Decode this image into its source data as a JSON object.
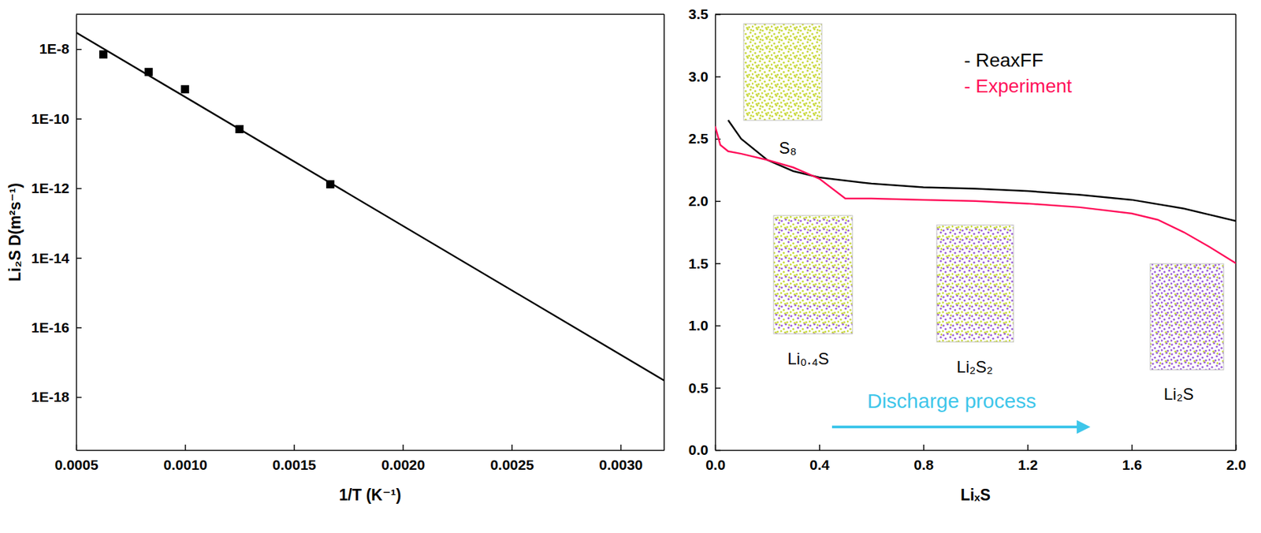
{
  "chart_data": [
    {
      "type": "scatter",
      "log": "y",
      "xlabel": "1/T (K⁻¹)",
      "ylabel": "Li₂S D(m²s⁻¹)",
      "xlim": [
        0.0005,
        0.0032
      ],
      "xticks": [
        {
          "value": 0.0005,
          "label": "0.0005"
        },
        {
          "value": 0.001,
          "label": "0.0010"
        },
        {
          "value": 0.0015,
          "label": "0.0015"
        },
        {
          "value": 0.002,
          "label": "0.0020"
        },
        {
          "value": 0.0025,
          "label": "0.0025"
        },
        {
          "value": 0.003,
          "label": "0.0030"
        }
      ],
      "ylim": [
        3e-20,
        1e-07
      ],
      "yticks": [
        {
          "value": 1e-08,
          "label": "1E-8"
        },
        {
          "value": 1e-10,
          "label": "1E-10"
        },
        {
          "value": 1e-12,
          "label": "1E-12"
        },
        {
          "value": 1e-14,
          "label": "1E-14"
        },
        {
          "value": 1e-16,
          "label": "1E-16"
        },
        {
          "value": 1e-18,
          "label": "1E-18"
        }
      ],
      "series": [
        {
          "type": "scatter",
          "marker": "square",
          "color": "#000000",
          "x": [
            0.000625,
            0.000833,
            0.001,
            0.00125,
            0.001667
          ],
          "values": [
            7e-09,
            2.2e-09,
            7e-10,
            5e-11,
            1.3e-12
          ]
        },
        {
          "type": "line",
          "line_style": "solid",
          "color": "#000000",
          "x": [
            0.0005,
            0.0032
          ],
          "values": [
            3e-08,
            3e-18
          ]
        }
      ]
    },
    {
      "type": "line",
      "xlabel": "LiₓS",
      "xlim": [
        0,
        2
      ],
      "xticks": [
        {
          "value": 0,
          "label": "0.0"
        },
        {
          "value": 0.4,
          "label": "0.4"
        },
        {
          "value": 0.8,
          "label": "0.8"
        },
        {
          "value": 1.2,
          "label": "1.2"
        },
        {
          "value": 1.6,
          "label": "1.6"
        },
        {
          "value": 2,
          "label": "2.0"
        }
      ],
      "ylim": [
        0,
        3.5
      ],
      "yticks": [
        {
          "value": 0,
          "label": "0.0"
        },
        {
          "value": 0.5,
          "label": "0.5"
        },
        {
          "value": 1,
          "label": "1.0"
        },
        {
          "value": 1.5,
          "label": "1.5"
        },
        {
          "value": 2,
          "label": "2.0"
        },
        {
          "value": 2.5,
          "label": "2.5"
        },
        {
          "value": 3,
          "label": "3.0"
        },
        {
          "value": 3.5,
          "label": "3.5"
        }
      ],
      "legend": "upper right",
      "annotations": [
        "S₈",
        "Li₀.₄S",
        "Li₂S₂",
        "Li₂S",
        "Discharge process"
      ],
      "series": [
        {
          "name": "- ReaxFF",
          "color": "#000000",
          "line_style": "solid",
          "x": [
            0.05,
            0.1,
            0.2,
            0.3,
            0.4,
            0.6,
            0.8,
            1.0,
            1.2,
            1.4,
            1.6,
            1.8,
            2.0
          ],
          "values": [
            2.65,
            2.5,
            2.33,
            2.24,
            2.19,
            2.14,
            2.11,
            2.1,
            2.08,
            2.05,
            2.01,
            1.94,
            1.84
          ]
        },
        {
          "name": "- Experiment",
          "color": "#ff0f5a",
          "line_style": "solid",
          "x": [
            0.0,
            0.02,
            0.05,
            0.1,
            0.2,
            0.3,
            0.4,
            0.5,
            0.6,
            0.8,
            1.0,
            1.2,
            1.4,
            1.6,
            1.7,
            1.8,
            1.9,
            2.0
          ],
          "values": [
            2.6,
            2.45,
            2.4,
            2.38,
            2.33,
            2.27,
            2.18,
            2.02,
            2.02,
            2.01,
            2.0,
            1.98,
            1.95,
            1.9,
            1.85,
            1.75,
            1.63,
            1.5
          ]
        }
      ]
    }
  ]
}
